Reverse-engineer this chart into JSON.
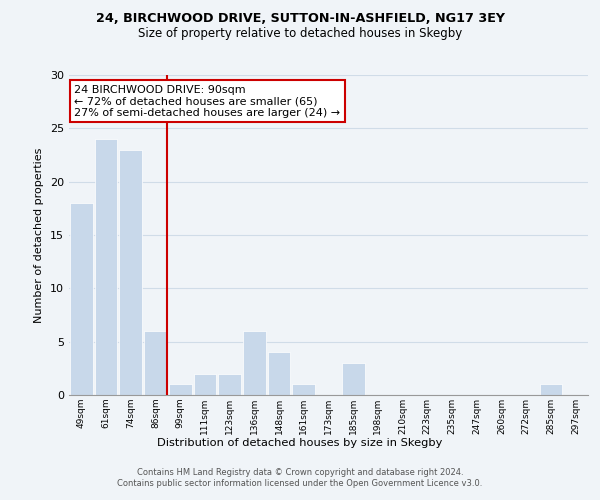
{
  "title1": "24, BIRCHWOOD DRIVE, SUTTON-IN-ASHFIELD, NG17 3EY",
  "title2": "Size of property relative to detached houses in Skegby",
  "xlabel": "Distribution of detached houses by size in Skegby",
  "ylabel": "Number of detached properties",
  "bar_labels": [
    "49sqm",
    "61sqm",
    "74sqm",
    "86sqm",
    "99sqm",
    "111sqm",
    "123sqm",
    "136sqm",
    "148sqm",
    "161sqm",
    "173sqm",
    "185sqm",
    "198sqm",
    "210sqm",
    "223sqm",
    "235sqm",
    "247sqm",
    "260sqm",
    "272sqm",
    "285sqm",
    "297sqm"
  ],
  "bar_values": [
    18,
    24,
    23,
    6,
    1,
    2,
    2,
    6,
    4,
    1,
    0,
    3,
    0,
    0,
    0,
    0,
    0,
    0,
    0,
    1,
    0
  ],
  "bar_color": "#c8d8ea",
  "bar_edge_color": "#ffffff",
  "property_line_color": "#cc0000",
  "annotation_line1": "24 BIRCHWOOD DRIVE: 90sqm",
  "annotation_line2": "← 72% of detached houses are smaller (65)",
  "annotation_line3": "27% of semi-detached houses are larger (24) →",
  "annotation_box_color": "#ffffff",
  "annotation_box_edge": "#cc0000",
  "ylim": [
    0,
    30
  ],
  "yticks": [
    0,
    5,
    10,
    15,
    20,
    25,
    30
  ],
  "grid_color": "#d0dce8",
  "footnote": "Contains HM Land Registry data © Crown copyright and database right 2024.\nContains public sector information licensed under the Open Government Licence v3.0.",
  "bg_color": "#f0f4f8"
}
